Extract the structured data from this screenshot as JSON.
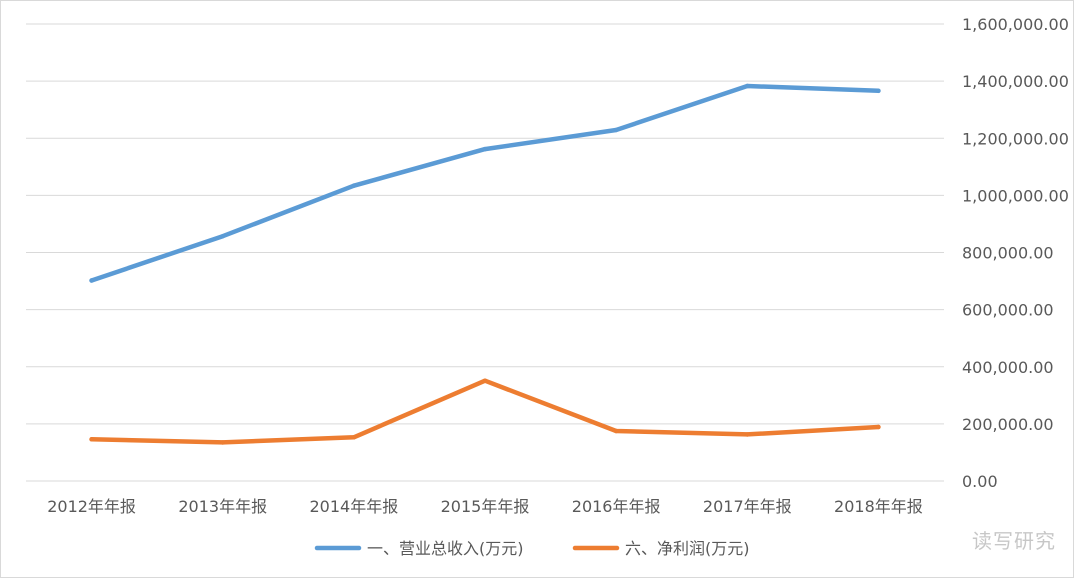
{
  "chart_data": {
    "type": "line",
    "categories": [
      "2012年年报",
      "2013年年报",
      "2014年年报",
      "2015年年报",
      "2016年年报",
      "2017年年报",
      "2018年年报"
    ],
    "series": [
      {
        "name": "一、营业总收入(万元)",
        "color": "#5b9bd5",
        "values": [
          702000,
          857000,
          1034000,
          1162000,
          1229000,
          1383000,
          1366000
        ]
      },
      {
        "name": "六、净利润(万元)",
        "color": "#ed7d31",
        "values": [
          146000,
          135000,
          153000,
          351000,
          175000,
          163000,
          189000
        ]
      }
    ],
    "ylim": [
      0,
      1600000
    ],
    "yticks": [
      "0.00",
      "200,000.00",
      "400,000.00",
      "600,000.00",
      "800,000.00",
      "1,000,000.00",
      "1,200,000.00",
      "1,400,000.00",
      "1,600,000.00"
    ],
    "grid": true,
    "yaxis_position": "right",
    "legend_position": "bottom"
  },
  "watermark": "读写研究"
}
